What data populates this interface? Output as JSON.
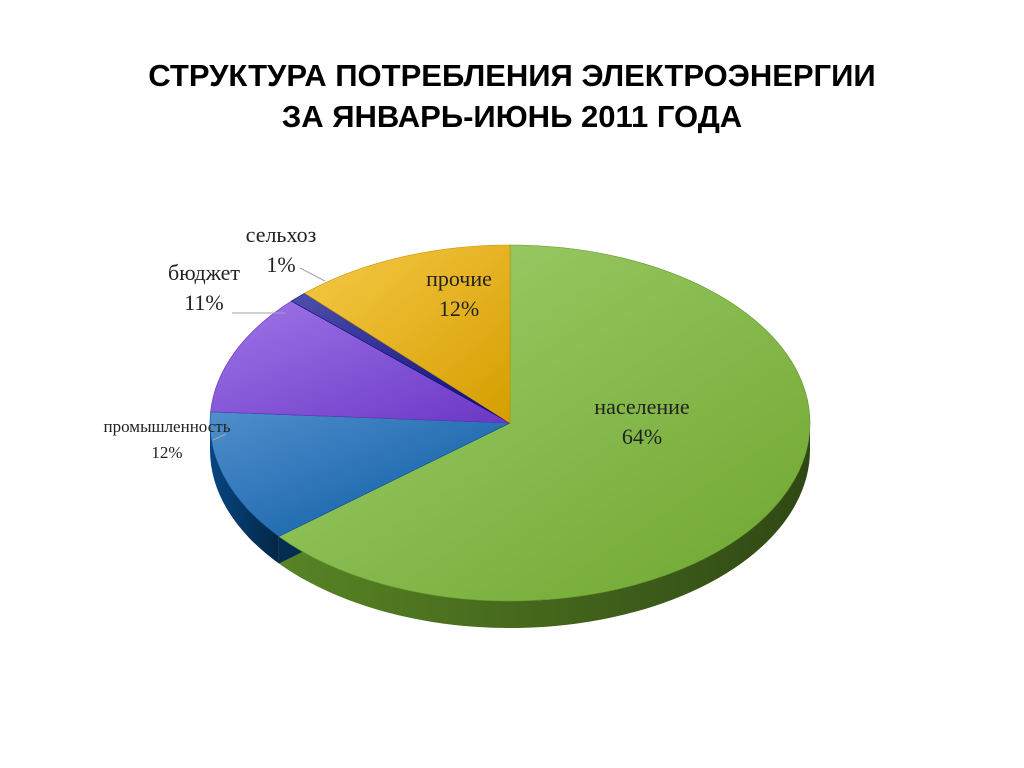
{
  "title": {
    "line1": "СТРУКТУРА ПОТРЕБЛЕНИЯ ЭЛЕКТРОЭНЕРГИИ",
    "line2": "ЗА ЯНВАРЬ-ИЮНЬ 2011 ГОДА"
  },
  "chart_data": {
    "type": "pie",
    "title": "СТРУКТУРА ПОТРЕБЛЕНИЯ ЭЛЕКТРОЭНЕРГИИ ЗА ЯНВАРЬ-ИЮНЬ 2011 ГОДА",
    "style": "3d",
    "legend": "none",
    "slices": [
      {
        "name": "население",
        "value": 64,
        "label": "64%",
        "color": "#7dbd35"
      },
      {
        "name": "промышленность",
        "value": 12,
        "label": "12%",
        "color": "#0a64b8"
      },
      {
        "name": "бюджет",
        "value": 11,
        "label": "11%",
        "color": "#7a3fe0"
      },
      {
        "name": "сельхоз",
        "value": 1,
        "label": "1%",
        "color": "#0a0a8c"
      },
      {
        "name": "прочие",
        "value": 12,
        "label": "12%",
        "color": "#f2b400"
      }
    ]
  }
}
